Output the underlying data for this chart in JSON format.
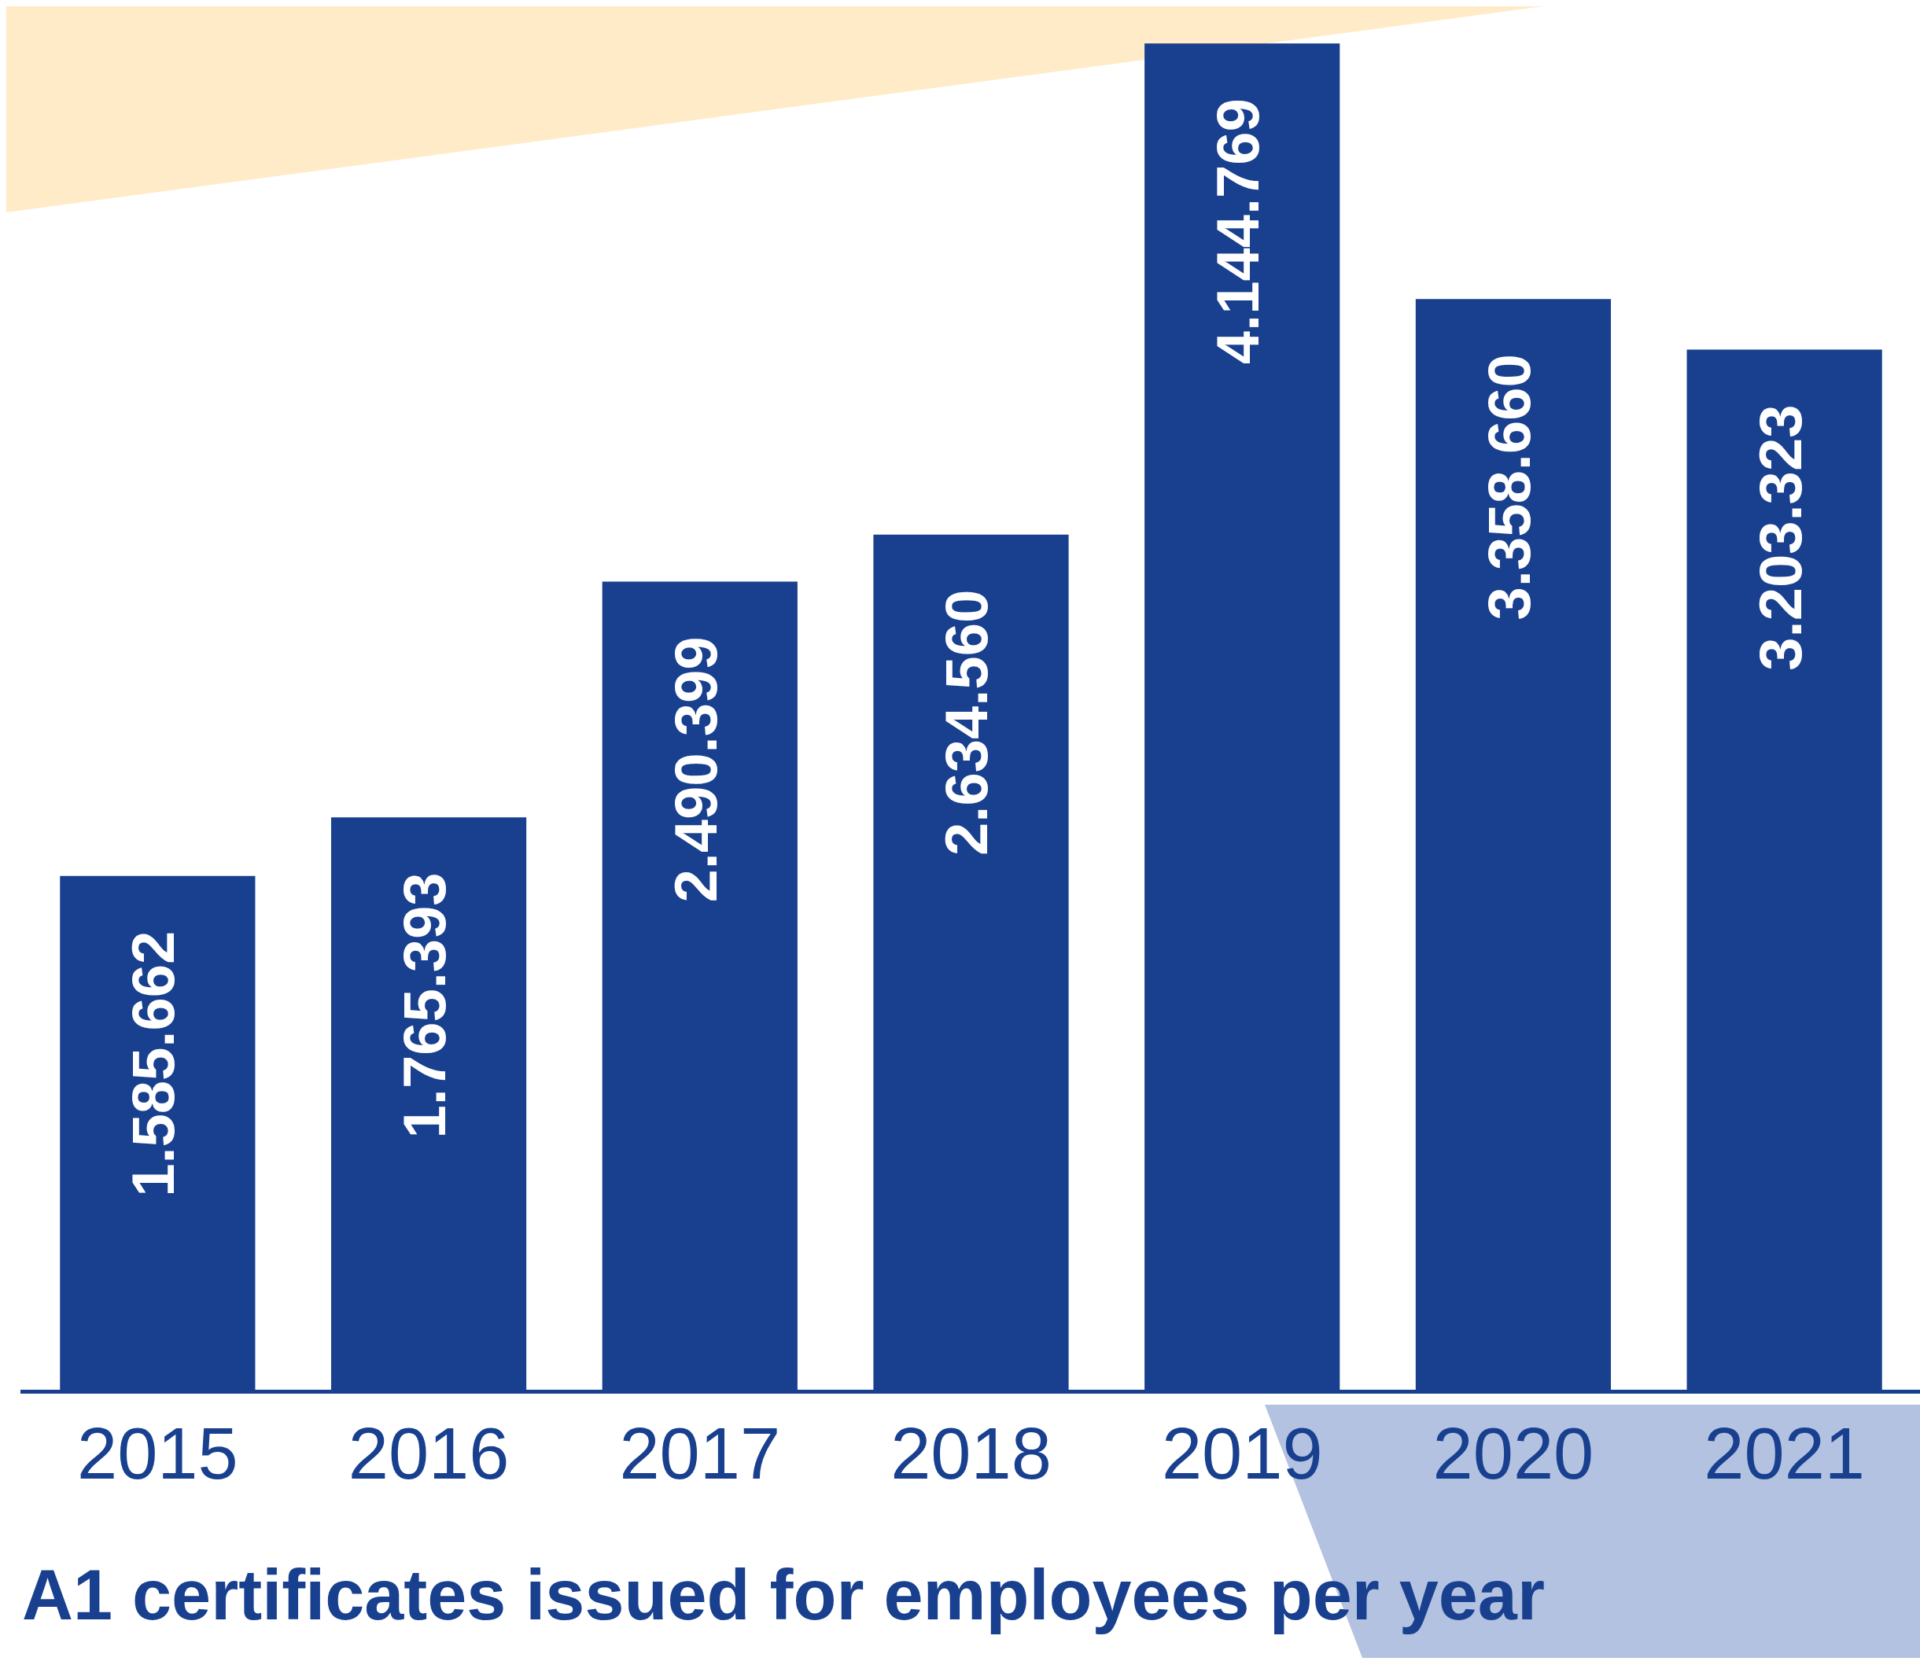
{
  "chart_data": {
    "type": "bar",
    "title": "A1 certificates issued for employees per year",
    "categories": [
      "2015",
      "2016",
      "2017",
      "2018",
      "2019",
      "2020",
      "2021"
    ],
    "values": [
      1585662,
      1765393,
      2490399,
      2634560,
      4144769,
      3358660,
      3203323
    ],
    "value_labels": [
      "1.585.662",
      "1.765.393",
      "2.490.399",
      "2.634.560",
      "4.144.769",
      "3.358.660",
      "3.203.323"
    ],
    "color": "#18408f",
    "grid": false,
    "legend": false
  }
}
